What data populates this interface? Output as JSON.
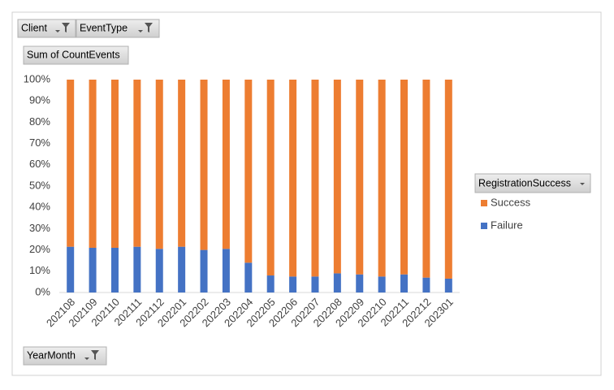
{
  "chart_data": {
    "type": "stacked_bar_100",
    "filters": [
      "Client",
      "EventType"
    ],
    "value_field": "Sum of CountEvents",
    "axis_field": "YearMonth",
    "legend_title": "RegistrationSuccess",
    "categories": [
      "202108",
      "202109",
      "202110",
      "202111",
      "202112",
      "202201",
      "202202",
      "202203",
      "202204",
      "202205",
      "202206",
      "202207",
      "202208",
      "202209",
      "202210",
      "202211",
      "202212",
      "202301"
    ],
    "series": [
      {
        "name": "Success",
        "color": "#ed7d31",
        "values": [
          78.5,
          79,
          79,
          78.5,
          79.5,
          78.5,
          80,
          79.5,
          86,
          92,
          92.5,
          92.5,
          91,
          91.5,
          92.5,
          91.5,
          93,
          93.5
        ]
      },
      {
        "name": "Failure",
        "color": "#4472c4",
        "values": [
          21.5,
          21,
          21,
          21.5,
          20.5,
          21.5,
          20,
          20.5,
          14,
          8,
          7.5,
          7.5,
          9,
          8.5,
          7.5,
          8.5,
          7,
          6.5
        ]
      }
    ],
    "ylim": [
      0,
      100
    ],
    "yticks": [
      {
        "value": 0,
        "label": "0%"
      },
      {
        "value": 10,
        "label": "10%"
      },
      {
        "value": 20,
        "label": "20%"
      },
      {
        "value": 30,
        "label": "30%"
      },
      {
        "value": 40,
        "label": "40%"
      },
      {
        "value": 50,
        "label": "50%"
      },
      {
        "value": 60,
        "label": "60%"
      },
      {
        "value": 70,
        "label": "70%"
      },
      {
        "value": 80,
        "label": "80%"
      },
      {
        "value": 90,
        "label": "90%"
      },
      {
        "value": 100,
        "label": "100%"
      }
    ],
    "grid": false,
    "legend": "right"
  }
}
